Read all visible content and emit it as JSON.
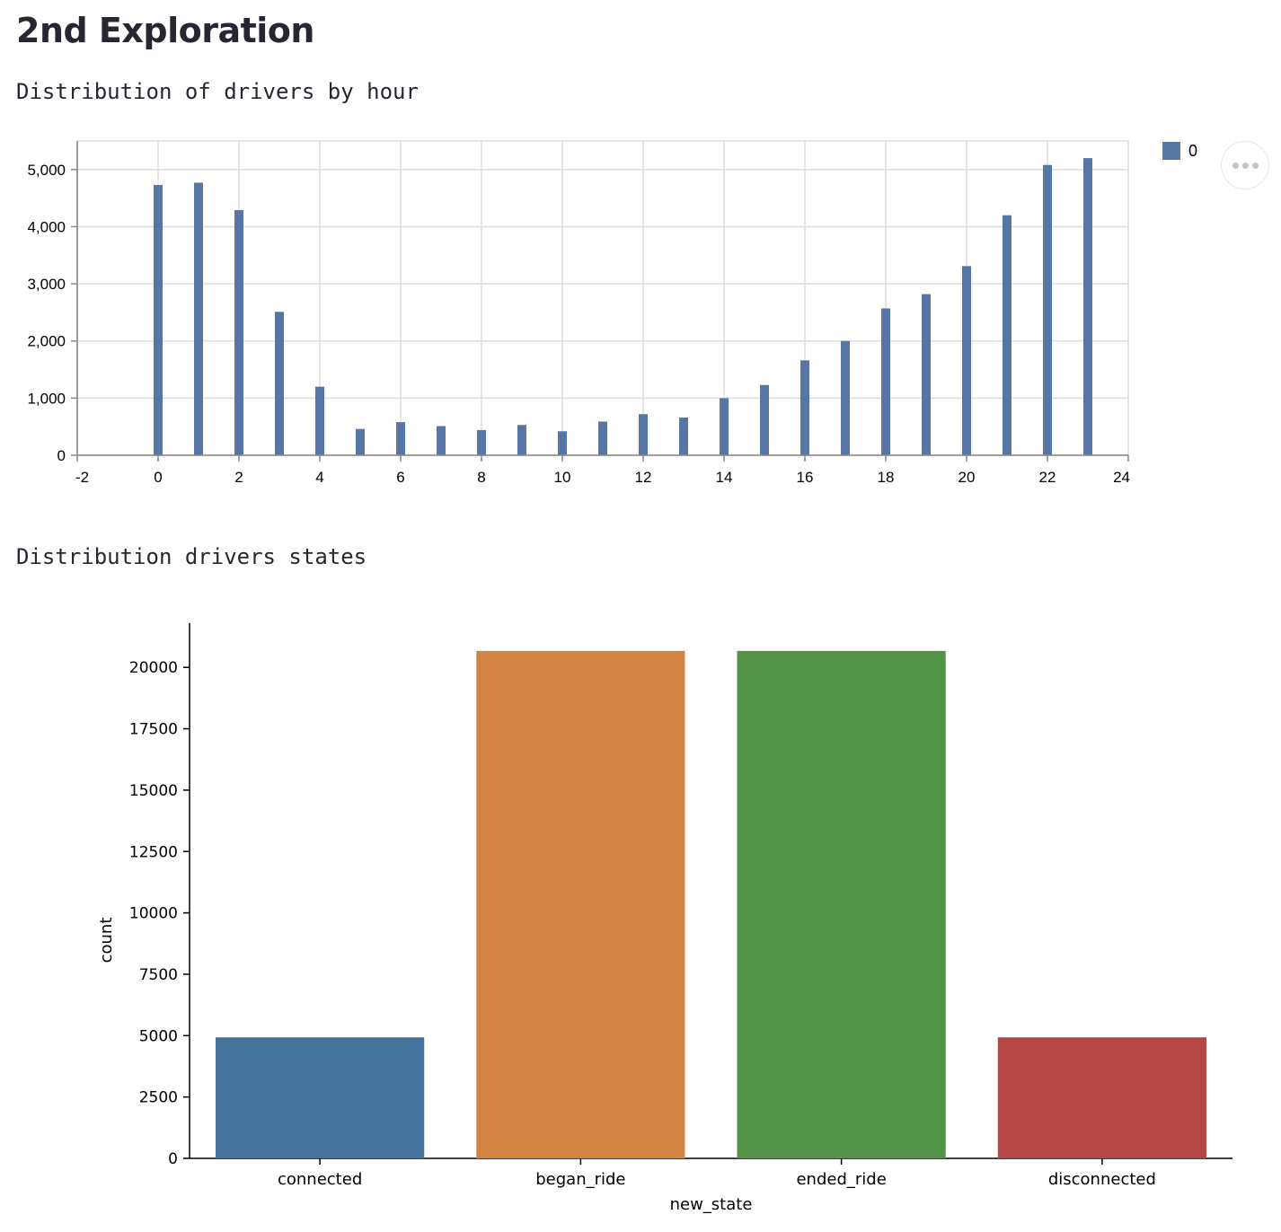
{
  "page": {
    "title": "2nd Exploration",
    "section1_label": "Distribution of drivers by hour",
    "section2_label": "Distribution drivers states"
  },
  "icons": {
    "menu": "ellipsis-icon"
  },
  "chart_data": [
    {
      "type": "bar",
      "title": "",
      "xlabel": "",
      "ylabel": "",
      "xlim": [
        -2,
        24
      ],
      "ylim": [
        0,
        5500
      ],
      "x_ticks": [
        -2,
        0,
        2,
        4,
        6,
        8,
        10,
        12,
        14,
        16,
        18,
        20,
        22,
        24
      ],
      "y_ticks": [
        0,
        1000,
        2000,
        3000,
        4000,
        5000
      ],
      "x_tick_labels": [
        "-2",
        "0",
        "2",
        "4",
        "6",
        "8",
        "10",
        "12",
        "14",
        "16",
        "18",
        "20",
        "22",
        "24"
      ],
      "y_tick_labels": [
        "0",
        "1,000",
        "2,000",
        "3,000",
        "4,000",
        "5,000"
      ],
      "grid": true,
      "legend_position": "top-right",
      "x": [
        0,
        1,
        2,
        3,
        4,
        5,
        6,
        7,
        8,
        9,
        10,
        11,
        12,
        13,
        14,
        15,
        16,
        17,
        18,
        19,
        20,
        21,
        22,
        23
      ],
      "series": [
        {
          "name": "0",
          "color": "#5677a4",
          "values": [
            4730,
            4770,
            4290,
            2510,
            1200,
            460,
            580,
            510,
            440,
            530,
            420,
            590,
            720,
            660,
            1000,
            1230,
            1660,
            2000,
            2570,
            2820,
            3310,
            4200,
            5080,
            5200
          ]
        }
      ]
    },
    {
      "type": "bar",
      "title": "",
      "xlabel": "new_state",
      "ylabel": "count",
      "ylim": [
        0,
        21800
      ],
      "y_ticks": [
        0,
        2500,
        5000,
        7500,
        10000,
        12500,
        15000,
        17500,
        20000
      ],
      "y_tick_labels": [
        "0",
        "2500",
        "5000",
        "7500",
        "10000",
        "12500",
        "15000",
        "17500",
        "20000"
      ],
      "grid": false,
      "categories": [
        "connected",
        "began_ride",
        "ended_ride",
        "disconnected"
      ],
      "values": [
        4930,
        20670,
        20670,
        4930
      ],
      "colors": [
        "#44739d",
        "#d38443",
        "#549248",
        "#b44745"
      ]
    }
  ]
}
